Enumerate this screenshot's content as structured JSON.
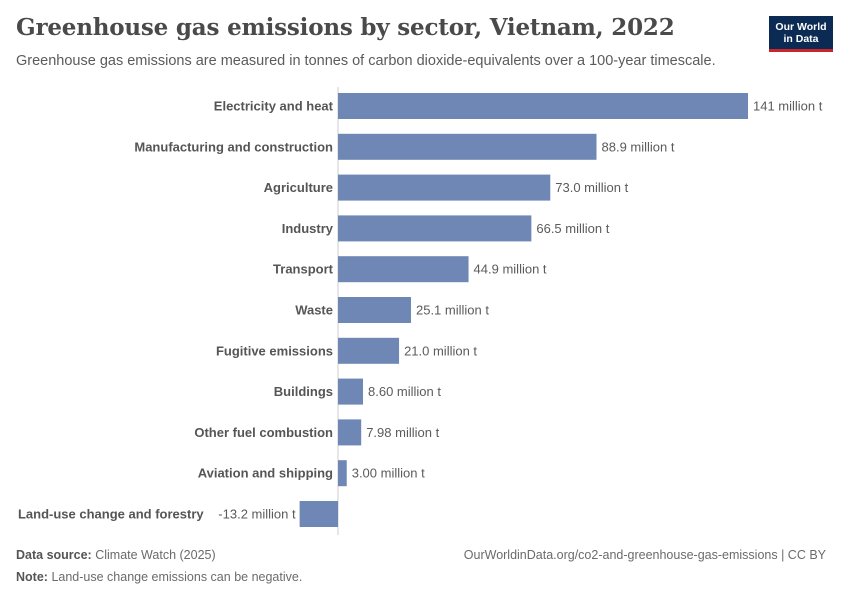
{
  "header": {
    "title": "Greenhouse gas emissions by sector, Vietnam, 2022",
    "subtitle": "Greenhouse gas emissions are measured in tonnes of carbon dioxide-equivalents over a 100-year timescale.",
    "logo_line1": "Our World",
    "logo_line2": "in Data"
  },
  "footer": {
    "source_label": "Data source:",
    "source_value": "Climate Watch (2025)",
    "note_label": "Note:",
    "note_value": "Land-use change emissions can be negative.",
    "url": "OurWorldinData.org/co2-and-greenhouse-gas-emissions | CC BY"
  },
  "colors": {
    "bar": "#6f87b4",
    "zero_line": "#cccccc"
  },
  "chart_data": {
    "type": "bar",
    "orientation": "horizontal",
    "unit": "million t",
    "categories": [
      "Electricity and heat",
      "Manufacturing and construction",
      "Agriculture",
      "Industry",
      "Transport",
      "Waste",
      "Fugitive emissions",
      "Buildings",
      "Other fuel combustion",
      "Aviation and shipping",
      "Land-use change and forestry"
    ],
    "values": [
      141,
      88.9,
      73.0,
      66.5,
      44.9,
      25.1,
      21.0,
      8.6,
      7.98,
      3.0,
      -13.2
    ],
    "value_labels": [
      "141 million t",
      "88.9 million t",
      "73.0 million t",
      "66.5 million t",
      "44.9 million t",
      "25.1 million t",
      "21.0 million t",
      "8.60 million t",
      "7.98 million t",
      "3.00 million t",
      "-13.2 million t"
    ],
    "xlim": [
      -13.2,
      141
    ]
  }
}
